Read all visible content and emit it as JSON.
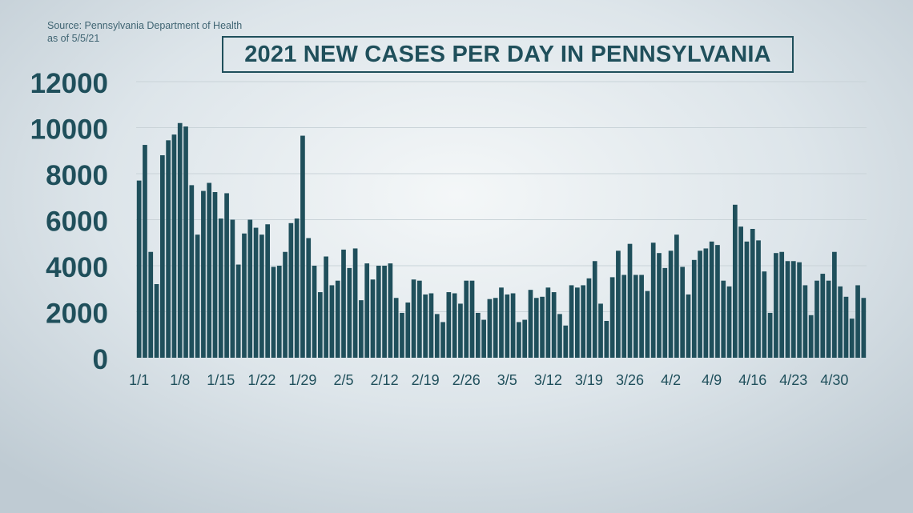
{
  "header": {
    "source_line1": "Source: Pennsylvania Department of Health",
    "source_line2": "as of 5/5/21"
  },
  "colors": {
    "bar": "#1f4f5b",
    "title": "#1f4f5b",
    "axis_text": "#1f4f5b",
    "grid": "#c9d3d8",
    "source_text": "#3f6472"
  },
  "chart_data": {
    "type": "bar",
    "title": "2021 NEW CASES PER DAY IN PENNSYLVANIA",
    "xlabel": "",
    "ylabel": "",
    "ylim": [
      0,
      12000
    ],
    "yticks": [
      0,
      2000,
      4000,
      6000,
      8000,
      10000,
      12000
    ],
    "xtick_labels": [
      {
        "index": 0,
        "label": "1/1"
      },
      {
        "index": 7,
        "label": "1/8"
      },
      {
        "index": 14,
        "label": "1/15"
      },
      {
        "index": 21,
        "label": "1/22"
      },
      {
        "index": 28,
        "label": "1/29"
      },
      {
        "index": 35,
        "label": "2/5"
      },
      {
        "index": 42,
        "label": "2/12"
      },
      {
        "index": 49,
        "label": "2/19"
      },
      {
        "index": 56,
        "label": "2/26"
      },
      {
        "index": 63,
        "label": "3/5"
      },
      {
        "index": 70,
        "label": "3/12"
      },
      {
        "index": 77,
        "label": "3/19"
      },
      {
        "index": 84,
        "label": "3/26"
      },
      {
        "index": 91,
        "label": "4/2"
      },
      {
        "index": 98,
        "label": "4/9"
      },
      {
        "index": 105,
        "label": "4/16"
      },
      {
        "index": 112,
        "label": "4/23"
      },
      {
        "index": 119,
        "label": "4/30"
      }
    ],
    "grid": true,
    "values": [
      7700,
      9250,
      4600,
      3200,
      8800,
      9450,
      9700,
      10200,
      10050,
      7500,
      5350,
      7250,
      7600,
      7200,
      6050,
      7150,
      6000,
      4050,
      5400,
      6000,
      5650,
      5350,
      5800,
      3950,
      4000,
      4600,
      5850,
      6050,
      9650,
      5200,
      4000,
      2850,
      4400,
      3150,
      3350,
      4700,
      3900,
      4750,
      2500,
      4100,
      3400,
      4000,
      4000,
      4100,
      2600,
      1950,
      2400,
      3400,
      3350,
      2750,
      2800,
      1900,
      1550,
      2850,
      2800,
      2350,
      3350,
      3350,
      1950,
      1650,
      2550,
      2600,
      3050,
      2750,
      2800,
      1550,
      1650,
      2950,
      2600,
      2650,
      3050,
      2850,
      1900,
      1400,
      3150,
      3050,
      3150,
      3450,
      4200,
      2350,
      1600,
      3500,
      4650,
      3600,
      4950,
      3600,
      3600,
      2900,
      5000,
      4550,
      3900,
      4650,
      5350,
      3950,
      2750,
      4250,
      4650,
      4750,
      5050,
      4900,
      3350,
      3100,
      6650,
      5700,
      5050,
      5600,
      5100,
      3750,
      1950,
      4550,
      4600,
      4200,
      4200,
      4150,
      3150,
      1850,
      3350,
      3650,
      3350,
      4600,
      3100,
      2650,
      1700,
      3150,
      2600
    ]
  }
}
